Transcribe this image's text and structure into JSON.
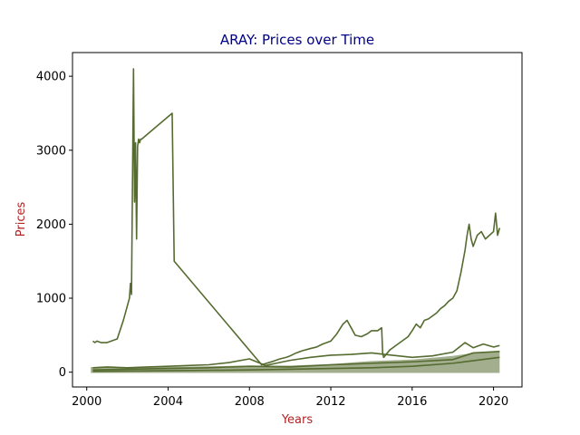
{
  "chart_data": {
    "type": "line",
    "title": "ARAY: Prices over Time",
    "title_color": "#00008b",
    "xlabel": "Years",
    "ylabel": "Prices",
    "label_color": "#b22222",
    "line_color": "#556b2f",
    "xlim": [
      1999.3,
      2021.4
    ],
    "ylim": [
      -200,
      4320
    ],
    "x_ticks": [
      {
        "value": 2000,
        "label": "2000"
      },
      {
        "value": 2004,
        "label": "2004"
      },
      {
        "value": 2008,
        "label": "2008"
      },
      {
        "value": 2012,
        "label": "2012"
      },
      {
        "value": 2016,
        "label": "2016"
      },
      {
        "value": 2020,
        "label": "2020"
      }
    ],
    "y_ticks": [
      {
        "value": 0,
        "label": "0"
      },
      {
        "value": 1000,
        "label": "1000"
      },
      {
        "value": 2000,
        "label": "2000"
      },
      {
        "value": 3000,
        "label": "3000"
      },
      {
        "value": 4000,
        "label": "4000"
      }
    ],
    "grid": false,
    "series": [
      {
        "x": [
          2000.3,
          2000.4,
          2000.5,
          2000.7,
          2001.0,
          2001.2,
          2001.5,
          2001.8,
          2002.0,
          2002.1,
          2002.15,
          2002.2,
          2002.3,
          2002.35,
          2002.4,
          2002.45,
          2002.5,
          2002.55,
          2002.6,
          2002.65,
          2002.7,
          2004.2,
          2004.3,
          2008.6,
          2009.2,
          2009.5,
          2009.8,
          2010.0,
          2010.3,
          2010.6,
          2011.0,
          2011.3,
          2011.6,
          2012.0,
          2012.3,
          2012.6,
          2012.8,
          2013.0,
          2013.2,
          2013.5,
          2013.8,
          2014.0,
          2014.3,
          2014.5,
          2014.55,
          2014.6,
          2014.9,
          2015.2,
          2015.5,
          2015.8,
          2016.0,
          2016.2,
          2016.4,
          2016.6,
          2016.8,
          2017.0,
          2017.2,
          2017.4,
          2017.6,
          2017.8,
          2018.0,
          2018.2,
          2018.4,
          2018.5,
          2018.6,
          2018.7,
          2018.8,
          2018.9,
          2019.0,
          2019.2,
          2019.4,
          2019.6,
          2019.8,
          2020.0,
          2020.1,
          2020.2,
          2020.3
        ],
        "y": [
          420,
          400,
          420,
          400,
          400,
          420,
          450,
          700,
          900,
          1000,
          1200,
          1050,
          4100,
          2300,
          3100,
          1800,
          3050,
          3150,
          3100,
          3150,
          3150,
          3500,
          1500,
          100,
          150,
          180,
          200,
          220,
          260,
          290,
          320,
          340,
          380,
          420,
          520,
          650,
          700,
          600,
          500,
          480,
          520,
          560,
          560,
          600,
          250,
          200,
          300,
          360,
          420,
          480,
          560,
          650,
          600,
          700,
          720,
          760,
          800,
          860,
          900,
          960,
          1000,
          1100,
          1350,
          1500,
          1650,
          1850,
          2000,
          1800,
          1700,
          1850,
          1900,
          1800,
          1850,
          1900,
          2150,
          1850,
          1950
        ]
      },
      {
        "x": [
          2000.3,
          2001.0,
          2002.0,
          2003.0,
          2004.0,
          2005.0,
          2006.0,
          2007.0,
          2008.0,
          2008.8,
          2009.3,
          2010.0,
          2011.0,
          2012.0,
          2013.0,
          2014.0,
          2015.0,
          2016.0,
          2017.0,
          2018.0,
          2018.6,
          2019.0,
          2019.5,
          2020.0,
          2020.3
        ],
        "y": [
          60,
          70,
          60,
          70,
          80,
          90,
          100,
          130,
          180,
          90,
          120,
          160,
          200,
          230,
          240,
          260,
          230,
          200,
          220,
          270,
          400,
          330,
          380,
          340,
          360
        ]
      },
      {
        "x": [
          2000.3,
          2002.0,
          2004.0,
          2006.0,
          2008.0,
          2010.0,
          2012.0,
          2014.0,
          2016.0,
          2018.0,
          2019.0,
          2020.3
        ],
        "y": [
          30,
          40,
          50,
          60,
          80,
          70,
          100,
          120,
          140,
          170,
          260,
          280
        ]
      },
      {
        "x": [
          2000.3,
          2002.0,
          2004.0,
          2006.0,
          2008.0,
          2010.0,
          2012.0,
          2014.0,
          2016.0,
          2018.0,
          2020.3
        ],
        "y": [
          10,
          15,
          20,
          25,
          30,
          40,
          50,
          60,
          80,
          120,
          200
        ]
      }
    ]
  }
}
